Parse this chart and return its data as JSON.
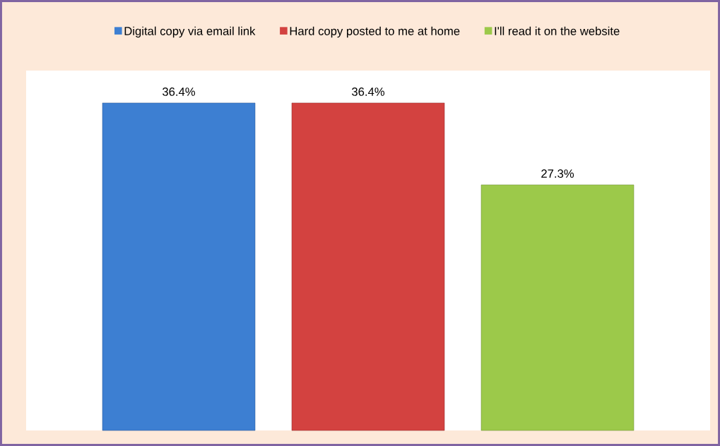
{
  "chart_data": {
    "type": "bar",
    "categories": [
      null
    ],
    "series": [
      {
        "name": "Digital copy via email link",
        "color": "#3d7fd2",
        "values": [
          36.4
        ],
        "value_labels": [
          "36.4%"
        ]
      },
      {
        "name": "Hard copy posted to me at home",
        "color": "#d34240",
        "values": [
          36.4
        ],
        "value_labels": [
          "36.4%"
        ]
      },
      {
        "name": "I'll read it on the website",
        "color": "#9cc94a",
        "values": [
          27.3
        ],
        "value_labels": [
          "27.3%"
        ]
      }
    ],
    "ylim": [
      0,
      40
    ],
    "legend": "top"
  }
}
